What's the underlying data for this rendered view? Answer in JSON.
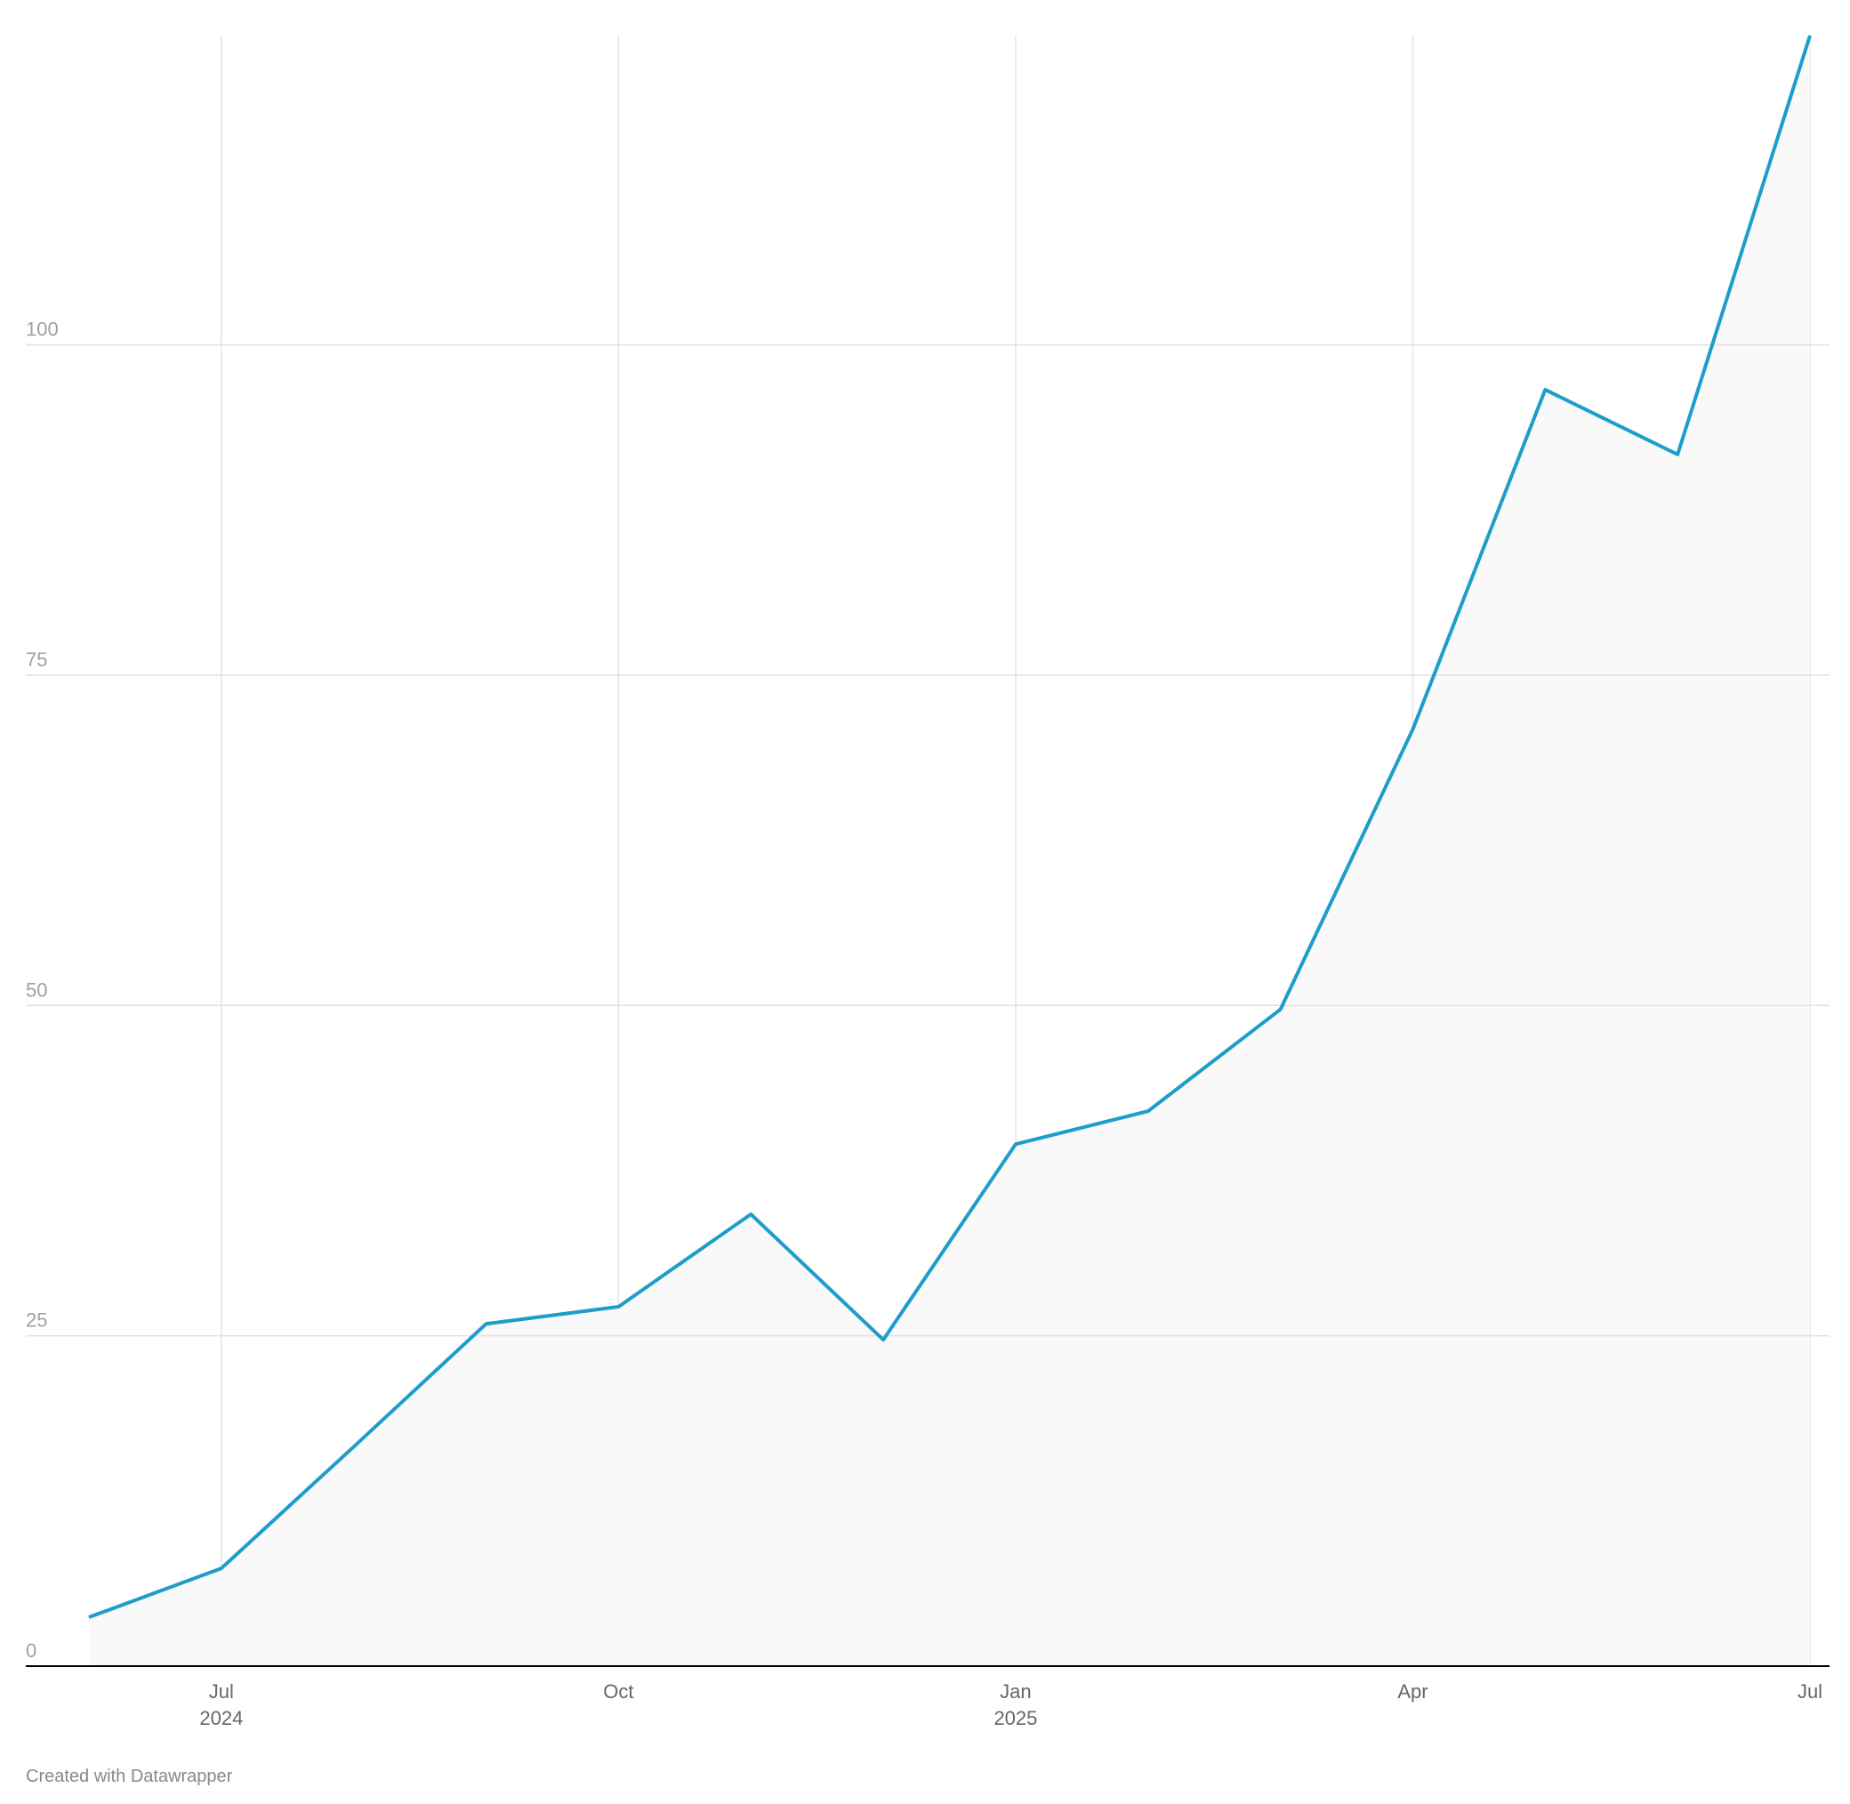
{
  "chart_data": {
    "type": "line",
    "footer": "Created with Datawrapper",
    "x": [
      "2024-06",
      "2024-07",
      "2024-08",
      "2024-09",
      "2024-10",
      "2024-11",
      "2024-12",
      "2025-01",
      "2025-02",
      "2025-03",
      "2025-04",
      "2025-05",
      "2025-06",
      "2025-07"
    ],
    "series": [
      {
        "color": "#1d9ec9",
        "values": [
          3.7,
          7.4,
          16.6,
          25.9,
          27.2,
          34.2,
          24.7,
          39.5,
          42.0,
          49.7,
          70.9,
          96.6,
          91.7,
          123.4
        ]
      }
    ],
    "area_color": "#f9f9f9",
    "xlim": [
      "2024-06",
      "2025-07"
    ],
    "xticks": [
      {
        "value": "2024-07",
        "label": "Jul",
        "year": "2024"
      },
      {
        "value": "2024-10",
        "label": "Oct"
      },
      {
        "value": "2025-01",
        "label": "Jan",
        "year": "2025"
      },
      {
        "value": "2025-04",
        "label": "Apr"
      },
      {
        "value": "2025-07",
        "label": "Jul"
      }
    ],
    "ylim": [
      0,
      123.4
    ],
    "yticks": [
      0,
      25,
      50,
      75,
      100
    ],
    "grid": true
  }
}
